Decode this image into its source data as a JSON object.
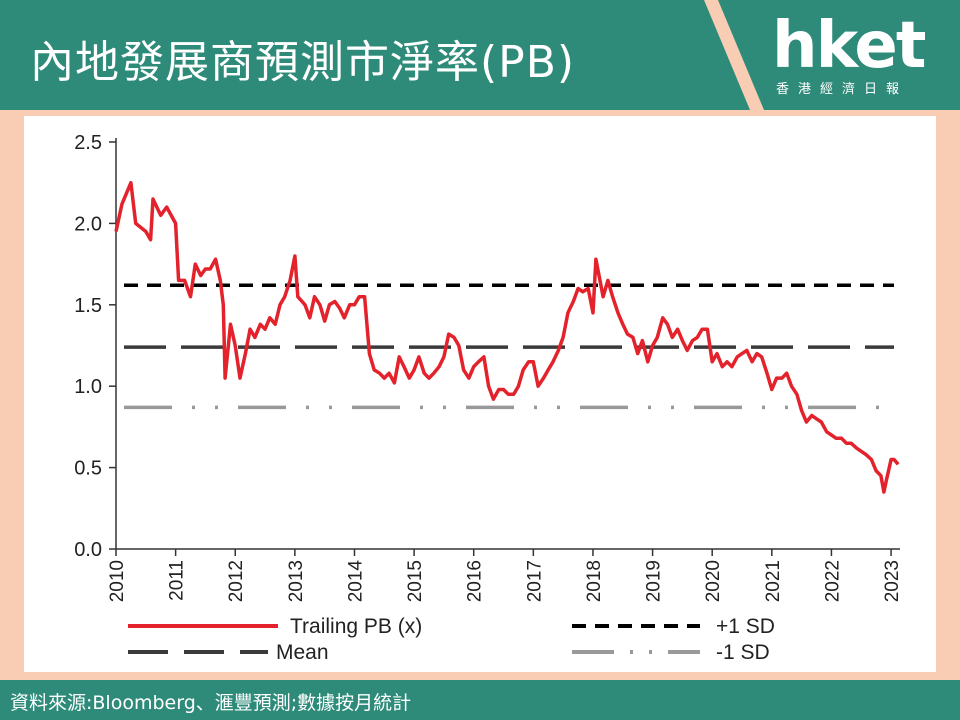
{
  "header": {
    "title": "內地發展商預測市淨率(PB)",
    "logo_text": "hket",
    "logo_subtitle": "香港經濟日報"
  },
  "footer": {
    "source": "資料來源:Bloomberg、滙豐預測;數據按月統計"
  },
  "colors": {
    "banner": "#2E8B7A",
    "background": "#F8CDB3",
    "trailing_pb": "#E3222B",
    "plus_sd": "#000000",
    "mean": "#3A3A3A",
    "minus_sd": "#999999"
  },
  "chart_data": {
    "type": "line",
    "title": "",
    "xlabel": "",
    "ylabel": "",
    "ylim": [
      0,
      2.5
    ],
    "yticks": [
      "0.0",
      "0.5",
      "1.0",
      "1.5",
      "2.0",
      "2.5"
    ],
    "xticks": [
      "2010",
      "2011",
      "2012",
      "2013",
      "2014",
      "2015",
      "2016",
      "2017",
      "2018",
      "2019",
      "2020",
      "2021",
      "2022",
      "2023"
    ],
    "grid": false,
    "legend": [
      "Trailing PB (x)",
      "+1 SD",
      "Mean",
      "-1 SD"
    ],
    "series": [
      {
        "name": "Trailing PB (x)",
        "points": [
          [
            2010.0,
            1.95
          ],
          [
            2010.1,
            2.12
          ],
          [
            2010.25,
            2.25
          ],
          [
            2010.33,
            2.0
          ],
          [
            2010.5,
            1.95
          ],
          [
            2010.58,
            1.9
          ],
          [
            2010.62,
            2.15
          ],
          [
            2010.75,
            2.05
          ],
          [
            2010.85,
            2.1
          ],
          [
            2011.0,
            2.0
          ],
          [
            2011.05,
            1.65
          ],
          [
            2011.15,
            1.65
          ],
          [
            2011.25,
            1.55
          ],
          [
            2011.33,
            1.75
          ],
          [
            2011.42,
            1.68
          ],
          [
            2011.5,
            1.72
          ],
          [
            2011.58,
            1.72
          ],
          [
            2011.67,
            1.78
          ],
          [
            2011.75,
            1.65
          ],
          [
            2011.8,
            1.5
          ],
          [
            2011.83,
            1.05
          ],
          [
            2011.92,
            1.38
          ],
          [
            2012.0,
            1.25
          ],
          [
            2012.08,
            1.05
          ],
          [
            2012.17,
            1.2
          ],
          [
            2012.25,
            1.35
          ],
          [
            2012.33,
            1.3
          ],
          [
            2012.42,
            1.38
          ],
          [
            2012.5,
            1.35
          ],
          [
            2012.58,
            1.42
          ],
          [
            2012.67,
            1.38
          ],
          [
            2012.75,
            1.5
          ],
          [
            2012.83,
            1.55
          ],
          [
            2012.92,
            1.65
          ],
          [
            2013.0,
            1.8
          ],
          [
            2013.05,
            1.55
          ],
          [
            2013.17,
            1.5
          ],
          [
            2013.25,
            1.42
          ],
          [
            2013.33,
            1.55
          ],
          [
            2013.42,
            1.5
          ],
          [
            2013.5,
            1.4
          ],
          [
            2013.58,
            1.5
          ],
          [
            2013.67,
            1.52
          ],
          [
            2013.75,
            1.48
          ],
          [
            2013.83,
            1.42
          ],
          [
            2013.92,
            1.5
          ],
          [
            2014.0,
            1.5
          ],
          [
            2014.08,
            1.55
          ],
          [
            2014.17,
            1.55
          ],
          [
            2014.25,
            1.2
          ],
          [
            2014.33,
            1.1
          ],
          [
            2014.42,
            1.08
          ],
          [
            2014.5,
            1.05
          ],
          [
            2014.58,
            1.08
          ],
          [
            2014.67,
            1.02
          ],
          [
            2014.75,
            1.18
          ],
          [
            2014.83,
            1.12
          ],
          [
            2014.92,
            1.05
          ],
          [
            2015.0,
            1.1
          ],
          [
            2015.08,
            1.18
          ],
          [
            2015.17,
            1.08
          ],
          [
            2015.25,
            1.05
          ],
          [
            2015.33,
            1.08
          ],
          [
            2015.42,
            1.12
          ],
          [
            2015.5,
            1.18
          ],
          [
            2015.58,
            1.32
          ],
          [
            2015.67,
            1.3
          ],
          [
            2015.75,
            1.25
          ],
          [
            2015.83,
            1.1
          ],
          [
            2015.92,
            1.05
          ],
          [
            2016.0,
            1.12
          ],
          [
            2016.08,
            1.15
          ],
          [
            2016.17,
            1.18
          ],
          [
            2016.25,
            1.0
          ],
          [
            2016.33,
            0.92
          ],
          [
            2016.42,
            0.98
          ],
          [
            2016.5,
            0.98
          ],
          [
            2016.58,
            0.95
          ],
          [
            2016.67,
            0.95
          ],
          [
            2016.75,
            1.0
          ],
          [
            2016.83,
            1.1
          ],
          [
            2016.92,
            1.15
          ],
          [
            2017.0,
            1.15
          ],
          [
            2017.08,
            1.0
          ],
          [
            2017.17,
            1.05
          ],
          [
            2017.25,
            1.1
          ],
          [
            2017.33,
            1.15
          ],
          [
            2017.42,
            1.22
          ],
          [
            2017.5,
            1.3
          ],
          [
            2017.58,
            1.45
          ],
          [
            2017.67,
            1.52
          ],
          [
            2017.75,
            1.6
          ],
          [
            2017.83,
            1.58
          ],
          [
            2017.92,
            1.6
          ],
          [
            2018.0,
            1.45
          ],
          [
            2018.05,
            1.78
          ],
          [
            2018.17,
            1.55
          ],
          [
            2018.25,
            1.65
          ],
          [
            2018.33,
            1.55
          ],
          [
            2018.42,
            1.45
          ],
          [
            2018.5,
            1.38
          ],
          [
            2018.58,
            1.32
          ],
          [
            2018.67,
            1.3
          ],
          [
            2018.75,
            1.2
          ],
          [
            2018.83,
            1.28
          ],
          [
            2018.92,
            1.15
          ],
          [
            2019.0,
            1.25
          ],
          [
            2019.08,
            1.3
          ],
          [
            2019.17,
            1.42
          ],
          [
            2019.25,
            1.38
          ],
          [
            2019.33,
            1.3
          ],
          [
            2019.42,
            1.35
          ],
          [
            2019.5,
            1.28
          ],
          [
            2019.58,
            1.22
          ],
          [
            2019.67,
            1.28
          ],
          [
            2019.75,
            1.3
          ],
          [
            2019.83,
            1.35
          ],
          [
            2019.92,
            1.35
          ],
          [
            2020.0,
            1.15
          ],
          [
            2020.08,
            1.2
          ],
          [
            2020.17,
            1.12
          ],
          [
            2020.25,
            1.15
          ],
          [
            2020.33,
            1.12
          ],
          [
            2020.42,
            1.18
          ],
          [
            2020.5,
            1.2
          ],
          [
            2020.58,
            1.22
          ],
          [
            2020.67,
            1.15
          ],
          [
            2020.75,
            1.2
          ],
          [
            2020.83,
            1.18
          ],
          [
            2020.92,
            1.08
          ],
          [
            2021.0,
            0.98
          ],
          [
            2021.08,
            1.05
          ],
          [
            2021.17,
            1.05
          ],
          [
            2021.25,
            1.08
          ],
          [
            2021.33,
            1.0
          ],
          [
            2021.42,
            0.95
          ],
          [
            2021.5,
            0.85
          ],
          [
            2021.58,
            0.78
          ],
          [
            2021.67,
            0.82
          ],
          [
            2021.75,
            0.8
          ],
          [
            2021.83,
            0.78
          ],
          [
            2021.92,
            0.72
          ],
          [
            2022.0,
            0.7
          ],
          [
            2022.08,
            0.68
          ],
          [
            2022.17,
            0.68
          ],
          [
            2022.25,
            0.65
          ],
          [
            2022.33,
            0.65
          ],
          [
            2022.42,
            0.62
          ],
          [
            2022.5,
            0.6
          ],
          [
            2022.58,
            0.58
          ],
          [
            2022.67,
            0.55
          ],
          [
            2022.75,
            0.48
          ],
          [
            2022.83,
            0.45
          ],
          [
            2022.88,
            0.35
          ],
          [
            2022.92,
            0.42
          ],
          [
            2023.0,
            0.55
          ],
          [
            2023.05,
            0.55
          ],
          [
            2023.12,
            0.52
          ]
        ]
      },
      {
        "name": "+1 SD",
        "value": 1.62
      },
      {
        "name": "Mean",
        "value": 1.24
      },
      {
        "name": "-1 SD",
        "value": 0.87
      }
    ]
  }
}
